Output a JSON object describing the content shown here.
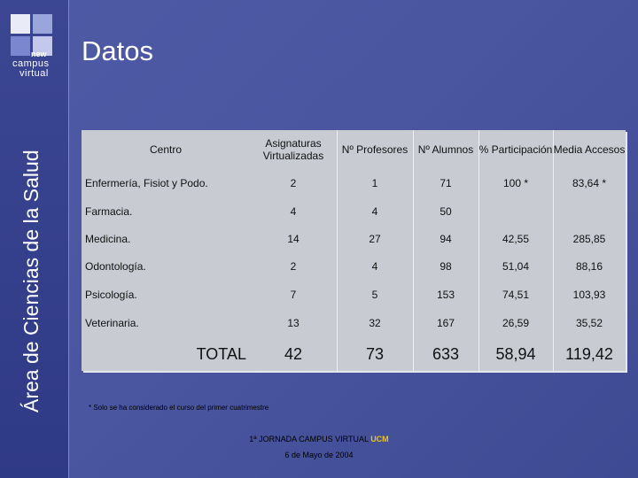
{
  "sidebar": {
    "logo_line1": "new",
    "logo_line2": "campus",
    "logo_line3": "virtual",
    "vertical_title": "Área de Ciencias de la Salud"
  },
  "page": {
    "title": "Datos"
  },
  "table": {
    "headers": [
      "Centro",
      "Asignaturas Virtualizadas",
      "Nº Profesores",
      "Nº Alumnos",
      "% Participación",
      "Media Accesos"
    ],
    "rows": [
      [
        "Enfermería, Fisiot y Podo.",
        "2",
        "1",
        "71",
        "100  *",
        "83,64  *"
      ],
      [
        "Farmacia.",
        "4",
        "4",
        "50",
        "",
        ""
      ],
      [
        "Medicina.",
        "14",
        "27",
        "94",
        "42,55",
        "285,85"
      ],
      [
        "Odontología.",
        "2",
        "4",
        "98",
        "51,04",
        "88,16"
      ],
      [
        "Psicología.",
        "7",
        "5",
        "153",
        "74,51",
        "103,93"
      ],
      [
        "Veterinaria.",
        "13",
        "32",
        "167",
        "26,59",
        "35,52"
      ]
    ],
    "total": [
      "TOTAL",
      "42",
      "73",
      "633",
      "58,94",
      "119,42"
    ]
  },
  "footnote": "* Solo se ha considerado el curso del primer cuatrimestre",
  "footer": {
    "line1": "1ª JORNADA CAMPUS VIRTUAL",
    "line1_accent": "UCM",
    "line2": "6 de Mayo de 2004"
  },
  "colors": {
    "background": "#4a56a0",
    "table": "#c8cbd1",
    "accent": "#f2c400"
  }
}
